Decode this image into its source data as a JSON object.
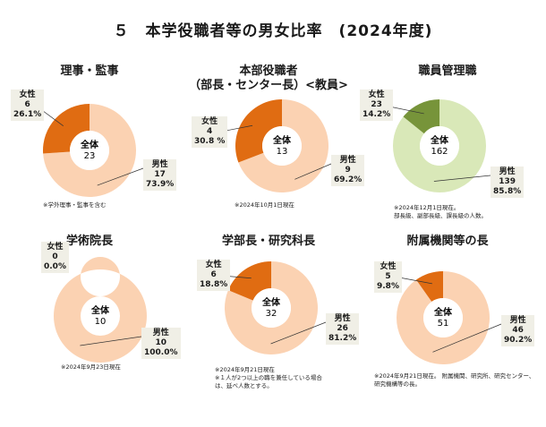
{
  "title": "５　本学役職者等の男女比率　(2024年度)",
  "chart_data": [
    {
      "type": "pie",
      "title": "理事・監事",
      "title_line2": "",
      "center_label": "全体",
      "total": "23",
      "female": {
        "label": "女性",
        "count": "6",
        "pct": "26.1%",
        "value": 6
      },
      "male": {
        "label": "男性",
        "count": "17",
        "pct": "73.9%",
        "value": 17
      },
      "colors": {
        "female": "#e06c12",
        "male": "#fbd2b2"
      },
      "note": [
        "※学外理事・監事を含む"
      ]
    },
    {
      "type": "pie",
      "title": "本部役職者",
      "title_line2": "（部長・センター長）<教員>",
      "center_label": "全体",
      "total": "13",
      "female": {
        "label": "女性",
        "count": "4",
        "pct": "30.8 %",
        "value": 4
      },
      "male": {
        "label": "男性",
        "count": "9",
        "pct": "69.2%",
        "value": 9
      },
      "colors": {
        "female": "#e06c12",
        "male": "#fbd2b2"
      },
      "note": [
        "※2024年10月1日現在"
      ]
    },
    {
      "type": "pie",
      "title": "職員管理職",
      "title_line2": "",
      "center_label": "全体",
      "total": "162",
      "female": {
        "label": "女性",
        "count": "23",
        "pct": "14.2%",
        "value": 23
      },
      "male": {
        "label": "男性",
        "count": "139",
        "pct": "85.8%",
        "value": 139
      },
      "colors": {
        "female": "#77943a",
        "male": "#d9e8b8"
      },
      "note": [
        "※2024年12月1日現在。",
        "部長級、副部長級、課長級の人数。"
      ]
    },
    {
      "type": "pie",
      "title": "学術院長",
      "title_line2": "",
      "center_label": "全体",
      "total": "10",
      "female": {
        "label": "女性",
        "count": "0",
        "pct": "0.0%",
        "value": 0
      },
      "male": {
        "label": "男性",
        "count": "10",
        "pct": "100.0%",
        "value": 10
      },
      "colors": {
        "female": "#e06c12",
        "male": "#fbd2b2"
      },
      "note": [
        "※2024年9月23日現在"
      ]
    },
    {
      "type": "pie",
      "title": "学部長・研究科長",
      "title_line2": "",
      "center_label": "全体",
      "total": "32",
      "female": {
        "label": "女性",
        "count": "6",
        "pct": "18.8%",
        "value": 6
      },
      "male": {
        "label": "男性",
        "count": "26",
        "pct": "81.2%",
        "value": 26
      },
      "colors": {
        "female": "#e06c12",
        "male": "#fbd2b2"
      },
      "note": [
        "※2024年9月21日現在",
        "※１人が2つ以上の職を兼任している場合",
        "は、延べ人数とする。"
      ]
    },
    {
      "type": "pie",
      "title": "附属機関等の長",
      "title_line2": "",
      "center_label": "全体",
      "total": "51",
      "female": {
        "label": "女性",
        "count": "5",
        "pct": "9.8%",
        "value": 5
      },
      "male": {
        "label": "男性",
        "count": "46",
        "pct": "90.2%",
        "value": 46
      },
      "colors": {
        "female": "#e06c12",
        "male": "#fbd2b2"
      },
      "note": [
        "※2024年9月21日現在。 附属機関、研究所、研究センター、",
        "研究機構等の長。"
      ]
    }
  ]
}
